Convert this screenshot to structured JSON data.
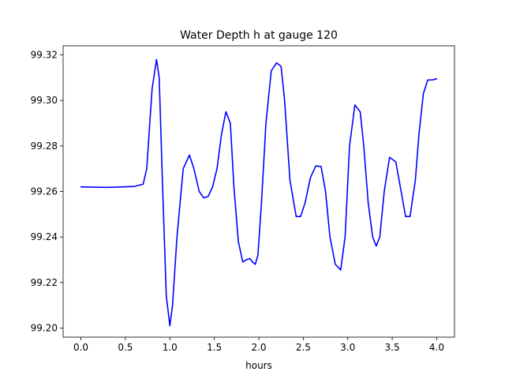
{
  "chart_data": {
    "type": "line",
    "title": "Water Depth h at gauge 120",
    "xlabel": "hours",
    "ylabel": "",
    "xlim": [
      -0.2,
      4.2
    ],
    "ylim": [
      99.196,
      99.324
    ],
    "xticks": [
      0.0,
      0.5,
      1.0,
      1.5,
      2.0,
      2.5,
      3.0,
      3.5,
      4.0
    ],
    "xtick_labels": [
      "0.0",
      "0.5",
      "1.0",
      "1.5",
      "2.0",
      "2.5",
      "3.0",
      "3.5",
      "4.0"
    ],
    "yticks": [
      99.2,
      99.22,
      99.24,
      99.26,
      99.28,
      99.3,
      99.32
    ],
    "ytick_labels": [
      "99.20",
      "99.22",
      "99.24",
      "99.26",
      "99.28",
      "99.30",
      "99.32"
    ],
    "grid": false,
    "series": [
      {
        "color": "#0000ff",
        "x": [
          0.0,
          0.3,
          0.6,
          0.7,
          0.74,
          0.8,
          0.85,
          0.88,
          0.92,
          0.96,
          1.0,
          1.03,
          1.08,
          1.15,
          1.22,
          1.27,
          1.33,
          1.38,
          1.43,
          1.48,
          1.53,
          1.58,
          1.63,
          1.68,
          1.72,
          1.77,
          1.82,
          1.86,
          1.9,
          1.93,
          1.96,
          1.99,
          2.03,
          2.08,
          2.14,
          2.2,
          2.25,
          2.29,
          2.35,
          2.42,
          2.47,
          2.52,
          2.58,
          2.64,
          2.7,
          2.75,
          2.8,
          2.86,
          2.92,
          2.97,
          3.02,
          3.08,
          3.14,
          3.18,
          3.23,
          3.28,
          3.32,
          3.36,
          3.41,
          3.47,
          3.54,
          3.6,
          3.65,
          3.7,
          3.76,
          3.8,
          3.85,
          3.9,
          3.95,
          4.0
        ],
        "y": [
          99.262,
          99.2618,
          99.2622,
          99.2632,
          99.27,
          99.305,
          99.318,
          99.31,
          99.26,
          99.214,
          99.201,
          99.21,
          99.24,
          99.27,
          99.276,
          99.27,
          99.26,
          99.2572,
          99.2578,
          99.262,
          99.27,
          99.285,
          99.295,
          99.29,
          99.262,
          99.238,
          99.229,
          99.23,
          99.2305,
          99.229,
          99.228,
          99.232,
          99.255,
          99.29,
          99.313,
          99.3165,
          99.315,
          99.3,
          99.265,
          99.249,
          99.249,
          99.255,
          99.266,
          99.2712,
          99.271,
          99.26,
          99.24,
          99.228,
          99.2255,
          99.24,
          99.28,
          99.298,
          99.295,
          99.28,
          99.255,
          99.24,
          99.236,
          99.24,
          99.26,
          99.275,
          99.273,
          99.26,
          99.249,
          99.249,
          99.265,
          99.285,
          99.303,
          99.309,
          99.309,
          99.3095
        ]
      }
    ]
  }
}
